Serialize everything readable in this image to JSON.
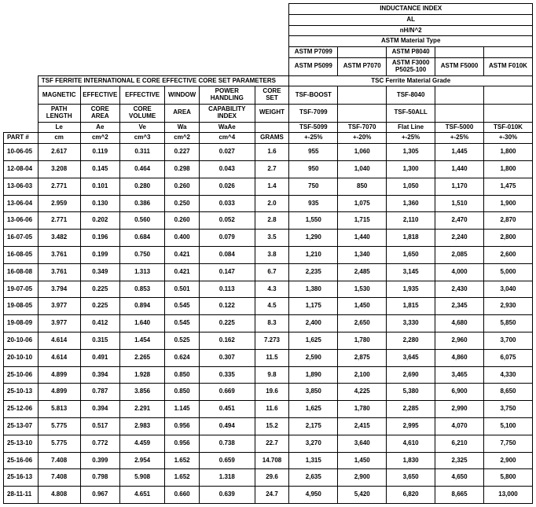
{
  "top_header": {
    "title": "INDUCTANCE INDEX",
    "sub1": "AL",
    "sub2": "nH/N^2",
    "astm_type": "ASTM Material Type",
    "astm_cols": [
      {
        "l1": "ASTM P7099",
        "l2": "ASTM P5099"
      },
      {
        "l1": "",
        "l2": "ASTM P7070"
      },
      {
        "l1": "ASTM P8040",
        "l2": "ASTM F3000",
        "l3": "P5025-100"
      },
      {
        "l1": "",
        "l2": "ASTM F5000"
      },
      {
        "l1": "",
        "l2": "ASTM F010K"
      }
    ],
    "tsc_grade": "TSC Ferrite Material Grade",
    "tsc_cols": [
      {
        "l1": "TSF-BOOST",
        "l2": "TSF-7099",
        "l3": "TSF-5099",
        "l4": "+-25%"
      },
      {
        "l1": "",
        "l2": "",
        "l3": "TSF-7070",
        "l4": "+-20%"
      },
      {
        "l1": "TSF-8040",
        "l2": "TSF-50ALL",
        "l3": "Flat Line",
        "l4": "+-25%"
      },
      {
        "l1": "",
        "l2": "",
        "l3": "TSF-5000",
        "l4": "+-25%"
      },
      {
        "l1": "",
        "l2": "",
        "l3": "TSF-010K",
        "l4": "+-30%"
      }
    ]
  },
  "param_header": {
    "title": "TSF FERRITE INTERNATIONAL E CORE EFFECTIVE CORE SET PARAMETERS",
    "cols": [
      {
        "l1": "MAGNETIC",
        "l2": "PATH LENGTH",
        "sym": "Le",
        "unit": "cm"
      },
      {
        "l1": "EFFECTIVE",
        "l2": "CORE AREA",
        "sym": "Ae",
        "unit": "cm^2"
      },
      {
        "l1": "EFFECTIVE",
        "l2": "CORE VOLUME",
        "sym": "Ve",
        "unit": "cm^3"
      },
      {
        "l1": "WINDOW",
        "l2": "AREA",
        "sym": "Wa",
        "unit": "cm^2"
      },
      {
        "l1": "POWER HANDLING",
        "l2": "CAPABILITY INDEX",
        "sym": "WaAe",
        "unit": "cm^4"
      },
      {
        "l1": "CORE SET",
        "l2": "WEIGHT",
        "sym": "",
        "unit": "GRAMS"
      }
    ],
    "part": "PART #"
  },
  "rows": [
    {
      "part": "10-06-05",
      "le": "2.617",
      "ae": "0.119",
      "ve": "0.311",
      "wa": "0.227",
      "waae": "0.027",
      "g": "1.6",
      "c1": "955",
      "c2": "1,060",
      "c3": "1,305",
      "c4": "1,445",
      "c5": "1,800"
    },
    {
      "part": "12-08-04",
      "le": "3.208",
      "ae": "0.145",
      "ve": "0.464",
      "wa": "0.298",
      "waae": "0.043",
      "g": "2.7",
      "c1": "950",
      "c2": "1,040",
      "c3": "1,300",
      "c4": "1,440",
      "c5": "1,800"
    },
    {
      "part": "13-06-03",
      "le": "2.771",
      "ae": "0.101",
      "ve": "0.280",
      "wa": "0.260",
      "waae": "0.026",
      "g": "1.4",
      "c1": "750",
      "c2": "850",
      "c3": "1,050",
      "c4": "1,170",
      "c5": "1,475"
    },
    {
      "part": "13-06-04",
      "le": "2.959",
      "ae": "0.130",
      "ve": "0.386",
      "wa": "0.250",
      "waae": "0.033",
      "g": "2.0",
      "c1": "935",
      "c2": "1,075",
      "c3": "1,360",
      "c4": "1,510",
      "c5": "1,900"
    },
    {
      "part": "13-06-06",
      "le": "2.771",
      "ae": "0.202",
      "ve": "0.560",
      "wa": "0.260",
      "waae": "0.052",
      "g": "2.8",
      "c1": "1,550",
      "c2": "1,715",
      "c3": "2,110",
      "c4": "2,470",
      "c5": "2,870"
    },
    {
      "part": "16-07-05",
      "le": "3.482",
      "ae": "0.196",
      "ve": "0.684",
      "wa": "0.400",
      "waae": "0.079",
      "g": "3.5",
      "c1": "1,290",
      "c2": "1,440",
      "c3": "1,818",
      "c4": "2,240",
      "c5": "2,800"
    },
    {
      "part": "16-08-05",
      "le": "3.761",
      "ae": "0.199",
      "ve": "0.750",
      "wa": "0.421",
      "waae": "0.084",
      "g": "3.8",
      "c1": "1,210",
      "c2": "1,340",
      "c3": "1,650",
      "c4": "2,085",
      "c5": "2,600"
    },
    {
      "part": "16-08-08",
      "le": "3.761",
      "ae": "0.349",
      "ve": "1.313",
      "wa": "0.421",
      "waae": "0.147",
      "g": "6.7",
      "c1": "2,235",
      "c2": "2,485",
      "c3": "3,145",
      "c4": "4,000",
      "c5": "5,000"
    },
    {
      "part": "19-07-05",
      "le": "3.794",
      "ae": "0.225",
      "ve": "0.853",
      "wa": "0.501",
      "waae": "0.113",
      "g": "4.3",
      "c1": "1,380",
      "c2": "1,530",
      "c3": "1,935",
      "c4": "2,430",
      "c5": "3,040"
    },
    {
      "part": "19-08-05",
      "le": "3.977",
      "ae": "0.225",
      "ve": "0.894",
      "wa": "0.545",
      "waae": "0.122",
      "g": "4.5",
      "c1": "1,175",
      "c2": "1,450",
      "c3": "1,815",
      "c4": "2,345",
      "c5": "2,930"
    },
    {
      "part": "19-08-09",
      "le": "3.977",
      "ae": "0.412",
      "ve": "1.640",
      "wa": "0.545",
      "waae": "0.225",
      "g": "8.3",
      "c1": "2,400",
      "c2": "2,650",
      "c3": "3,330",
      "c4": "4,680",
      "c5": "5,850"
    },
    {
      "part": "20-10-06",
      "le": "4.614",
      "ae": "0.315",
      "ve": "1.454",
      "wa": "0.525",
      "waae": "0.162",
      "g": "7.273",
      "c1": "1,625",
      "c2": "1,780",
      "c3": "2,280",
      "c4": "2,960",
      "c5": "3,700"
    },
    {
      "part": "20-10-10",
      "le": "4.614",
      "ae": "0.491",
      "ve": "2.265",
      "wa": "0.624",
      "waae": "0.307",
      "g": "11.5",
      "c1": "2,590",
      "c2": "2,875",
      "c3": "3,645",
      "c4": "4,860",
      "c5": "6,075"
    },
    {
      "part": "25-10-06",
      "le": "4.899",
      "ae": "0.394",
      "ve": "1.928",
      "wa": "0.850",
      "waae": "0.335",
      "g": "9.8",
      "c1": "1,890",
      "c2": "2,100",
      "c3": "2,690",
      "c4": "3,465",
      "c5": "4,330"
    },
    {
      "part": "25-10-13",
      "le": "4.899",
      "ae": "0.787",
      "ve": "3.856",
      "wa": "0.850",
      "waae": "0.669",
      "g": "19.6",
      "c1": "3,850",
      "c2": "4,225",
      "c3": "5,380",
      "c4": "6,900",
      "c5": "8,650"
    },
    {
      "part": "25-12-06",
      "le": "5.813",
      "ae": "0.394",
      "ve": "2.291",
      "wa": "1.145",
      "waae": "0.451",
      "g": "11.6",
      "c1": "1,625",
      "c2": "1,780",
      "c3": "2,285",
      "c4": "2,990",
      "c5": "3,750"
    },
    {
      "part": "25-13-07",
      "le": "5.775",
      "ae": "0.517",
      "ve": "2.983",
      "wa": "0.956",
      "waae": "0.494",
      "g": "15.2",
      "c1": "2,175",
      "c2": "2,415",
      "c3": "2,995",
      "c4": "4,070",
      "c5": "5,100"
    },
    {
      "part": "25-13-10",
      "le": "5.775",
      "ae": "0.772",
      "ve": "4.459",
      "wa": "0.956",
      "waae": "0.738",
      "g": "22.7",
      "c1": "3,270",
      "c2": "3,640",
      "c3": "4,610",
      "c4": "6,210",
      "c5": "7,750"
    },
    {
      "part": "25-16-06",
      "le": "7.408",
      "ae": "0.399",
      "ve": "2.954",
      "wa": "1.652",
      "waae": "0.659",
      "g": "14.708",
      "c1": "1,315",
      "c2": "1,450",
      "c3": "1,830",
      "c4": "2,325",
      "c5": "2,900"
    },
    {
      "part": "25-16-13",
      "le": "7.408",
      "ae": "0.798",
      "ve": "5.908",
      "wa": "1.652",
      "waae": "1.318",
      "g": "29.6",
      "c1": "2,635",
      "c2": "2,900",
      "c3": "3,650",
      "c4": "4,650",
      "c5": "5,800"
    },
    {
      "part": "28-11-11",
      "le": "4.808",
      "ae": "0.967",
      "ve": "4.651",
      "wa": "0.660",
      "waae": "0.639",
      "g": "24.7",
      "c1": "4,950",
      "c2": "5,420",
      "c3": "6,820",
      "c4": "8,665",
      "c5": "13,000"
    }
  ]
}
